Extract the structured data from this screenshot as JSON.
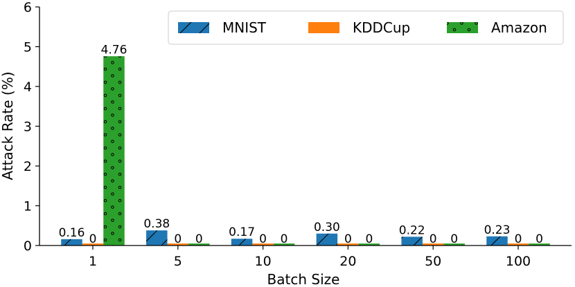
{
  "chart_data": {
    "type": "bar",
    "categories": [
      "1",
      "5",
      "10",
      "20",
      "50",
      "100"
    ],
    "series": [
      {
        "name": "MNIST",
        "values": [
          0.16,
          0.38,
          0.17,
          0.3,
          0.22,
          0.23
        ],
        "labels": [
          "0.16",
          "0.38",
          "0.17",
          "0.30",
          "0.22",
          "0.23"
        ],
        "color": "#1f77b4",
        "pattern": "hatch-slash"
      },
      {
        "name": "KDDCup",
        "values": [
          0,
          0,
          0,
          0,
          0,
          0
        ],
        "labels": [
          "0",
          "0",
          "0",
          "0",
          "0",
          "0"
        ],
        "color": "#ff7f0e",
        "pattern": "none"
      },
      {
        "name": "Amazon",
        "values": [
          4.76,
          0,
          0,
          0,
          0,
          0
        ],
        "labels": [
          "4.76",
          "0",
          "0",
          "0",
          "0",
          "0"
        ],
        "color": "#2ca02c",
        "pattern": "dots"
      }
    ],
    "xlabel": "Batch Size",
    "ylabel": "Attack Rate (%)",
    "ylim": [
      0,
      6
    ],
    "yticks": [
      "0",
      "1",
      "2",
      "3",
      "4",
      "5",
      "6"
    ],
    "grid": false,
    "legend_position": "top-right"
  }
}
